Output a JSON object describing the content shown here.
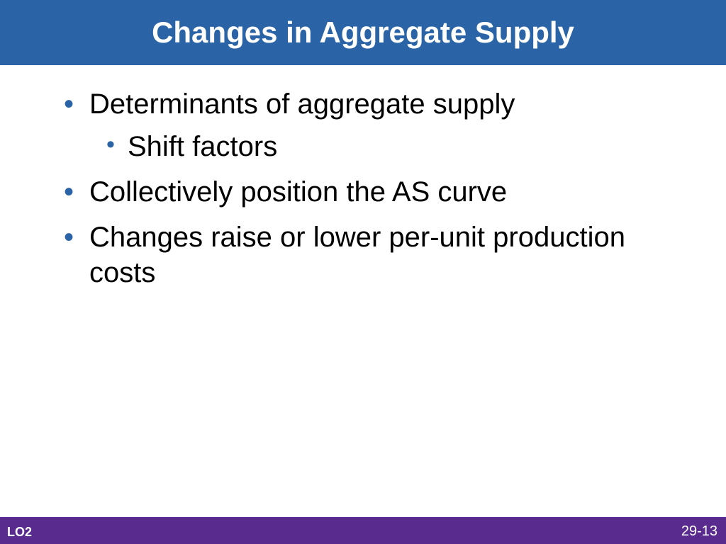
{
  "title": "Changes in Aggregate Supply",
  "bullets": [
    {
      "text": "Determinants of aggregate supply",
      "children": [
        {
          "text": "Shift factors"
        }
      ]
    },
    {
      "text": "Collectively position the AS curve"
    },
    {
      "text": "Changes raise or lower per-unit production costs"
    }
  ],
  "footer": {
    "lo": "LO2",
    "page": "29-13"
  },
  "style": {
    "title_bg": "#2b64a6",
    "title_color": "#ffffff",
    "title_fontsize_pt": 32,
    "bullet_color": "#2b64a6",
    "body_text_color": "#000000",
    "body_fontsize_pt": 30,
    "footer_bg": "#5a2b8f",
    "footer_text_color": "#ffffff",
    "page_bg": "#ffffff"
  }
}
